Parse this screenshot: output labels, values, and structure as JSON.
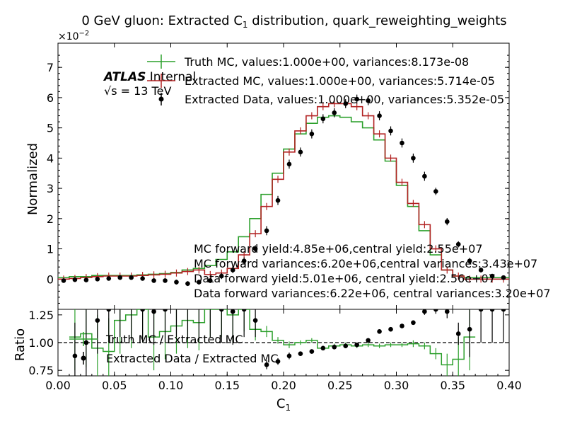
{
  "chart_data": [
    {
      "type": "line",
      "panel": "main",
      "title_pre": "0 GeV gluon: Extracted C",
      "title_sub": "1",
      "title_post": " distribution, quark_reweighting_weights",
      "ylabel": "Normalized",
      "y_multiplier": "×10",
      "y_multiplier_exp": "−2",
      "xlim": [
        0.0,
        0.4
      ],
      "ylim": [
        -1,
        7.8
      ],
      "yticks": [
        "0",
        "1",
        "2",
        "3",
        "4",
        "5",
        "6",
        "7"
      ],
      "atlas_label": "ATLAS",
      "atlas_sub": " Internal",
      "energy_label": "√s = 13 TeV",
      "legend": [
        "Truth MC, values:1.000e+00, variances:8.173e-08",
        "Extracted MC, values:1.000e+00, variances:5.714e-05",
        "Extracted Data, values:1.000e+00, variances:5.352e-05"
      ],
      "annotations": [
        "MC forward yield:4.85e+06,central yield:2.55e+07",
        "MC forward variances:6.20e+06,central variances:3.43e+07",
        "Data forward yield:5.01e+06, central yield:2.56e+07",
        "Data forward variances:6.22e+06, central variances:3.20e+07"
      ],
      "bin_width": 0.01,
      "series": [
        {
          "name": "Truth MC",
          "color": "#2ca02c",
          "style": "step",
          "x": [
            0.0,
            0.01,
            0.02,
            0.03,
            0.04,
            0.05,
            0.06,
            0.07,
            0.08,
            0.09,
            0.1,
            0.11,
            0.12,
            0.13,
            0.14,
            0.15,
            0.16,
            0.17,
            0.18,
            0.19,
            0.2,
            0.21,
            0.22,
            0.23,
            0.24,
            0.25,
            0.26,
            0.27,
            0.28,
            0.29,
            0.3,
            0.31,
            0.32,
            0.33,
            0.34,
            0.35,
            0.36,
            0.37,
            0.38,
            0.39
          ],
          "y": [
            0.05,
            0.08,
            0.08,
            0.12,
            0.12,
            0.12,
            0.12,
            0.14,
            0.16,
            0.18,
            0.22,
            0.3,
            0.35,
            0.45,
            0.65,
            0.9,
            1.4,
            2.0,
            2.8,
            3.5,
            4.3,
            4.8,
            5.15,
            5.35,
            5.4,
            5.35,
            5.2,
            5.0,
            4.6,
            3.9,
            3.1,
            2.4,
            1.6,
            0.8,
            0.3,
            0.1,
            0.05,
            0.05,
            0.05,
            0.05
          ]
        },
        {
          "name": "Extracted MC",
          "color": "#b22222",
          "style": "step",
          "x": [
            0.0,
            0.01,
            0.02,
            0.03,
            0.04,
            0.05,
            0.06,
            0.07,
            0.08,
            0.09,
            0.1,
            0.11,
            0.12,
            0.13,
            0.14,
            0.15,
            0.16,
            0.17,
            0.18,
            0.19,
            0.2,
            0.21,
            0.22,
            0.23,
            0.24,
            0.25,
            0.26,
            0.27,
            0.28,
            0.29,
            0.3,
            0.31,
            0.32,
            0.33,
            0.34,
            0.35,
            0.36,
            0.37,
            0.38,
            0.39
          ],
          "y": [
            0.0,
            0.02,
            0.05,
            0.08,
            0.1,
            0.1,
            0.1,
            0.12,
            0.14,
            0.16,
            0.2,
            0.25,
            0.3,
            0.15,
            0.2,
            0.35,
            0.8,
            1.5,
            2.4,
            3.3,
            4.2,
            4.9,
            5.4,
            5.7,
            5.8,
            5.8,
            5.7,
            5.4,
            4.8,
            4.0,
            3.2,
            2.5,
            1.8,
            1.0,
            0.3,
            0.1,
            0.0,
            0.0,
            0.0,
            0.0
          ]
        },
        {
          "name": "Extracted Data",
          "color": "#000000",
          "style": "points",
          "x": [
            0.005,
            0.015,
            0.025,
            0.035,
            0.045,
            0.055,
            0.065,
            0.075,
            0.085,
            0.095,
            0.105,
            0.115,
            0.125,
            0.135,
            0.145,
            0.155,
            0.165,
            0.175,
            0.185,
            0.195,
            0.205,
            0.215,
            0.225,
            0.235,
            0.245,
            0.255,
            0.265,
            0.275,
            0.285,
            0.295,
            0.305,
            0.315,
            0.325,
            0.335,
            0.345,
            0.355,
            0.365,
            0.375,
            0.385,
            0.395
          ],
          "y": [
            -0.05,
            -0.02,
            -0.03,
            0.0,
            0.02,
            0.05,
            0.05,
            0.02,
            -0.05,
            -0.05,
            -0.1,
            -0.15,
            -0.1,
            -0.05,
            0.1,
            0.3,
            0.6,
            1.0,
            1.6,
            2.6,
            3.8,
            4.2,
            4.8,
            5.3,
            5.5,
            5.8,
            5.95,
            5.9,
            5.4,
            4.9,
            4.5,
            4.0,
            3.4,
            2.9,
            1.9,
            1.15,
            0.6,
            0.3,
            0.1,
            0.05
          ],
          "yerr": [
            0.06,
            0.06,
            0.06,
            0.06,
            0.06,
            0.06,
            0.06,
            0.06,
            0.06,
            0.06,
            0.08,
            0.08,
            0.08,
            0.08,
            0.1,
            0.1,
            0.12,
            0.12,
            0.15,
            0.15,
            0.15,
            0.15,
            0.15,
            0.15,
            0.15,
            0.15,
            0.15,
            0.15,
            0.15,
            0.15,
            0.15,
            0.15,
            0.15,
            0.12,
            0.12,
            0.1,
            0.1,
            0.08,
            0.06,
            0.06
          ]
        }
      ]
    },
    {
      "type": "line",
      "panel": "ratio",
      "ylabel": "Ratio",
      "xlabel_pre": "C",
      "xlabel_sub": "1",
      "xlim": [
        0.0,
        0.4
      ],
      "ylim": [
        0.7,
        1.3
      ],
      "xticks": [
        "0.00",
        "0.05",
        "0.10",
        "0.15",
        "0.20",
        "0.25",
        "0.30",
        "0.35",
        "0.40"
      ],
      "yticks": [
        "0.75",
        "1.00",
        "1.25"
      ],
      "legend": [
        "Truth MC / Extracted MC",
        "Extracted Data / Extracted MC"
      ],
      "series": [
        {
          "name": "Truth MC / Extracted MC",
          "color": "#2ca02c",
          "style": "step",
          "x": [
            0.01,
            0.02,
            0.03,
            0.04,
            0.05,
            0.06,
            0.07,
            0.08,
            0.09,
            0.1,
            0.11,
            0.12,
            0.13,
            0.14,
            0.15,
            0.16,
            0.17,
            0.18,
            0.19,
            0.2,
            0.21,
            0.22,
            0.23,
            0.24,
            0.25,
            0.26,
            0.27,
            0.28,
            0.29,
            0.3,
            0.31,
            0.32,
            0.33,
            0.34,
            0.35,
            0.36
          ],
          "y": [
            1.05,
            1.08,
            0.95,
            0.92,
            1.2,
            1.25,
            1.3,
            1.05,
            1.1,
            1.15,
            1.2,
            1.18,
            1.3,
            1.3,
            1.25,
            1.3,
            1.12,
            1.1,
            1.02,
            0.98,
            1.0,
            1.02,
            0.95,
            0.97,
            0.98,
            0.97,
            0.98,
            0.97,
            0.98,
            0.98,
            0.99,
            0.97,
            0.9,
            0.8,
            0.85,
            1.05
          ],
          "yerr": [
            0.3,
            0.3,
            0.3,
            0.3,
            0.3,
            0.3,
            0.3,
            0.3,
            0.25,
            0.25,
            0.25,
            0.25,
            0.25,
            0.25,
            0.25,
            0.2,
            0.1,
            0.05,
            0.03,
            0.03,
            0.02,
            0.02,
            0.02,
            0.02,
            0.02,
            0.02,
            0.02,
            0.02,
            0.02,
            0.02,
            0.03,
            0.03,
            0.05,
            0.1,
            0.2,
            0.3
          ]
        },
        {
          "name": "Extracted Data / Extracted MC",
          "color": "#000000",
          "style": "points",
          "x": [
            0.015,
            0.025,
            0.035,
            0.045,
            0.055,
            0.065,
            0.075,
            0.085,
            0.095,
            0.105,
            0.115,
            0.125,
            0.135,
            0.145,
            0.155,
            0.165,
            0.175,
            0.185,
            0.195,
            0.205,
            0.215,
            0.225,
            0.235,
            0.245,
            0.255,
            0.265,
            0.275,
            0.285,
            0.295,
            0.305,
            0.315,
            0.325,
            0.335,
            0.345,
            0.355,
            0.365,
            0.375,
            0.385,
            0.395
          ],
          "y": [
            0.88,
            1.0,
            1.2,
            1.3,
            1.35,
            1.32,
            1.3,
            1.28,
            1.3,
            1.35,
            1.33,
            1.32,
            1.35,
            1.3,
            1.28,
            1.3,
            1.2,
            0.8,
            0.83,
            0.88,
            0.9,
            0.92,
            0.95,
            0.96,
            0.97,
            0.98,
            1.02,
            1.1,
            1.12,
            1.15,
            1.18,
            1.28,
            1.3,
            1.28,
            1.08,
            1.12,
            1.3,
            1.3,
            1.3
          ],
          "yerr": [
            0.3,
            0.3,
            0.3,
            0.3,
            0.3,
            0.3,
            0.3,
            0.3,
            0.3,
            0.3,
            0.3,
            0.3,
            0.3,
            0.3,
            0.3,
            0.25,
            0.15,
            0.04,
            0.03,
            0.03,
            0.02,
            0.02,
            0.02,
            0.02,
            0.02,
            0.02,
            0.02,
            0.02,
            0.02,
            0.02,
            0.02,
            0.03,
            0.04,
            0.06,
            0.1,
            0.25,
            0.3,
            0.3,
            0.3
          ]
        }
      ]
    }
  ]
}
